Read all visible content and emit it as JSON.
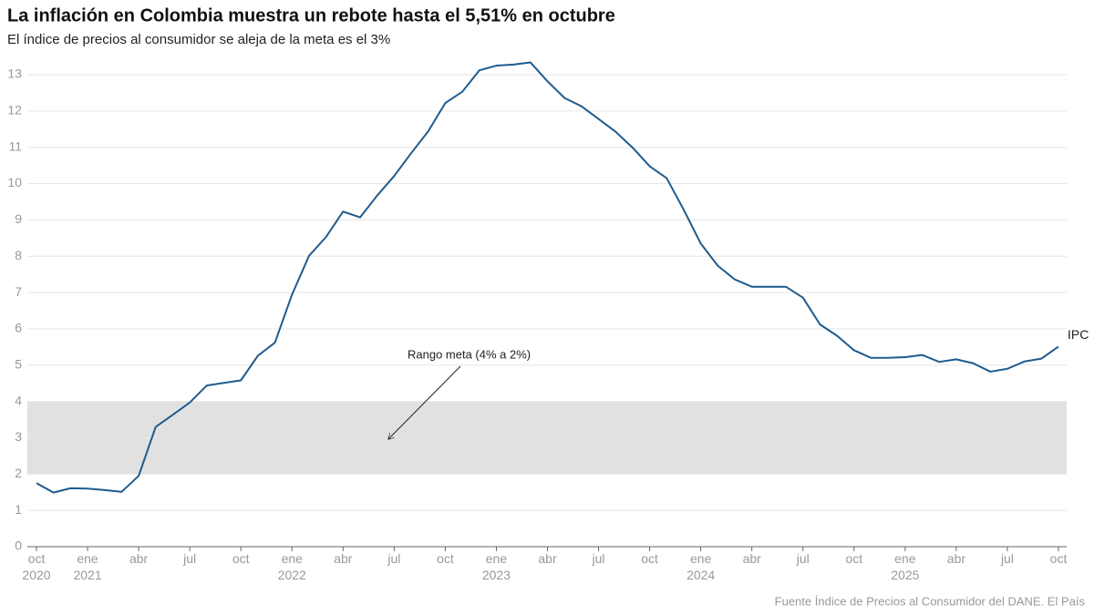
{
  "chart_data": {
    "type": "line",
    "title": "La inflación en Colombia muestra un rebote hasta el 5,51% en octubre",
    "subtitle": "El índice de precios al consumidor se aleja de la meta es el 3%",
    "source": "Fuente Índice de Precios al Consumidor del DANE. El País",
    "annotation": "Rango meta (4% a 2%)",
    "target_band": [
      2,
      4
    ],
    "band_color": "#e1e1e1",
    "x": [
      "2020-10",
      "2020-11",
      "2020-12",
      "2021-01",
      "2021-02",
      "2021-03",
      "2021-04",
      "2021-05",
      "2021-06",
      "2021-07",
      "2021-08",
      "2021-09",
      "2021-10",
      "2021-11",
      "2021-12",
      "2022-01",
      "2022-02",
      "2022-03",
      "2022-04",
      "2022-05",
      "2022-06",
      "2022-07",
      "2022-08",
      "2022-09",
      "2022-10",
      "2022-11",
      "2022-12",
      "2023-01",
      "2023-02",
      "2023-03",
      "2023-04",
      "2023-05",
      "2023-06",
      "2023-07",
      "2023-08",
      "2023-09",
      "2023-10",
      "2023-11",
      "2023-12",
      "2024-01",
      "2024-02",
      "2024-03",
      "2024-04",
      "2024-05",
      "2024-06",
      "2024-07",
      "2024-08",
      "2024-09",
      "2024-10",
      "2024-11",
      "2024-12",
      "2025-01",
      "2025-02",
      "2025-03",
      "2025-04",
      "2025-05",
      "2025-06",
      "2025-07",
      "2025-08",
      "2025-09",
      "2025-10"
    ],
    "series": [
      {
        "name": "IPC",
        "color": "#1f5b8e",
        "values": [
          1.75,
          1.49,
          1.61,
          1.6,
          1.56,
          1.51,
          1.95,
          3.3,
          3.63,
          3.97,
          4.44,
          4.51,
          4.58,
          5.26,
          5.62,
          6.94,
          8.01,
          8.53,
          9.23,
          9.07,
          9.67,
          10.21,
          10.84,
          11.44,
          12.22,
          12.53,
          13.12,
          13.25,
          13.28,
          13.34,
          12.82,
          12.36,
          12.13,
          11.78,
          11.43,
          10.99,
          10.48,
          10.15,
          9.28,
          8.35,
          7.74,
          7.36,
          7.16,
          7.16,
          7.16,
          6.86,
          6.12,
          5.81,
          5.41,
          5.2,
          5.2,
          5.22,
          5.28,
          5.09,
          5.16,
          5.05,
          4.82,
          4.9,
          5.1,
          5.18,
          5.51
        ]
      }
    ],
    "xlim": [
      "2020-10",
      "2025-10"
    ],
    "xticks": [
      {
        "value": "2020-10",
        "label": "oct\n2020"
      },
      {
        "value": "2021-01",
        "label": "ene\n2021"
      },
      {
        "value": "2021-04",
        "label": "abr"
      },
      {
        "value": "2021-07",
        "label": "jul"
      },
      {
        "value": "2021-10",
        "label": "oct"
      },
      {
        "value": "2022-01",
        "label": "ene\n2022"
      },
      {
        "value": "2022-04",
        "label": "abr"
      },
      {
        "value": "2022-07",
        "label": "jul"
      },
      {
        "value": "2022-10",
        "label": "oct"
      },
      {
        "value": "2023-01",
        "label": "ene\n2023"
      },
      {
        "value": "2023-04",
        "label": "abr"
      },
      {
        "value": "2023-07",
        "label": "jul"
      },
      {
        "value": "2023-10",
        "label": "oct"
      },
      {
        "value": "2024-01",
        "label": "ene\n2024"
      },
      {
        "value": "2024-04",
        "label": "abr"
      },
      {
        "value": "2024-07",
        "label": "jul"
      },
      {
        "value": "2024-10",
        "label": "oct"
      },
      {
        "value": "2025-01",
        "label": "ene\n2025"
      },
      {
        "value": "2025-04",
        "label": "abr"
      },
      {
        "value": "2025-07",
        "label": "jul"
      },
      {
        "value": "2025-10",
        "label": "oct"
      }
    ],
    "ylim": [
      0,
      13
    ],
    "yticks": [
      0,
      1,
      2,
      3,
      4,
      5,
      6,
      7,
      8,
      9,
      10,
      11,
      12,
      13
    ],
    "grid": true
  }
}
